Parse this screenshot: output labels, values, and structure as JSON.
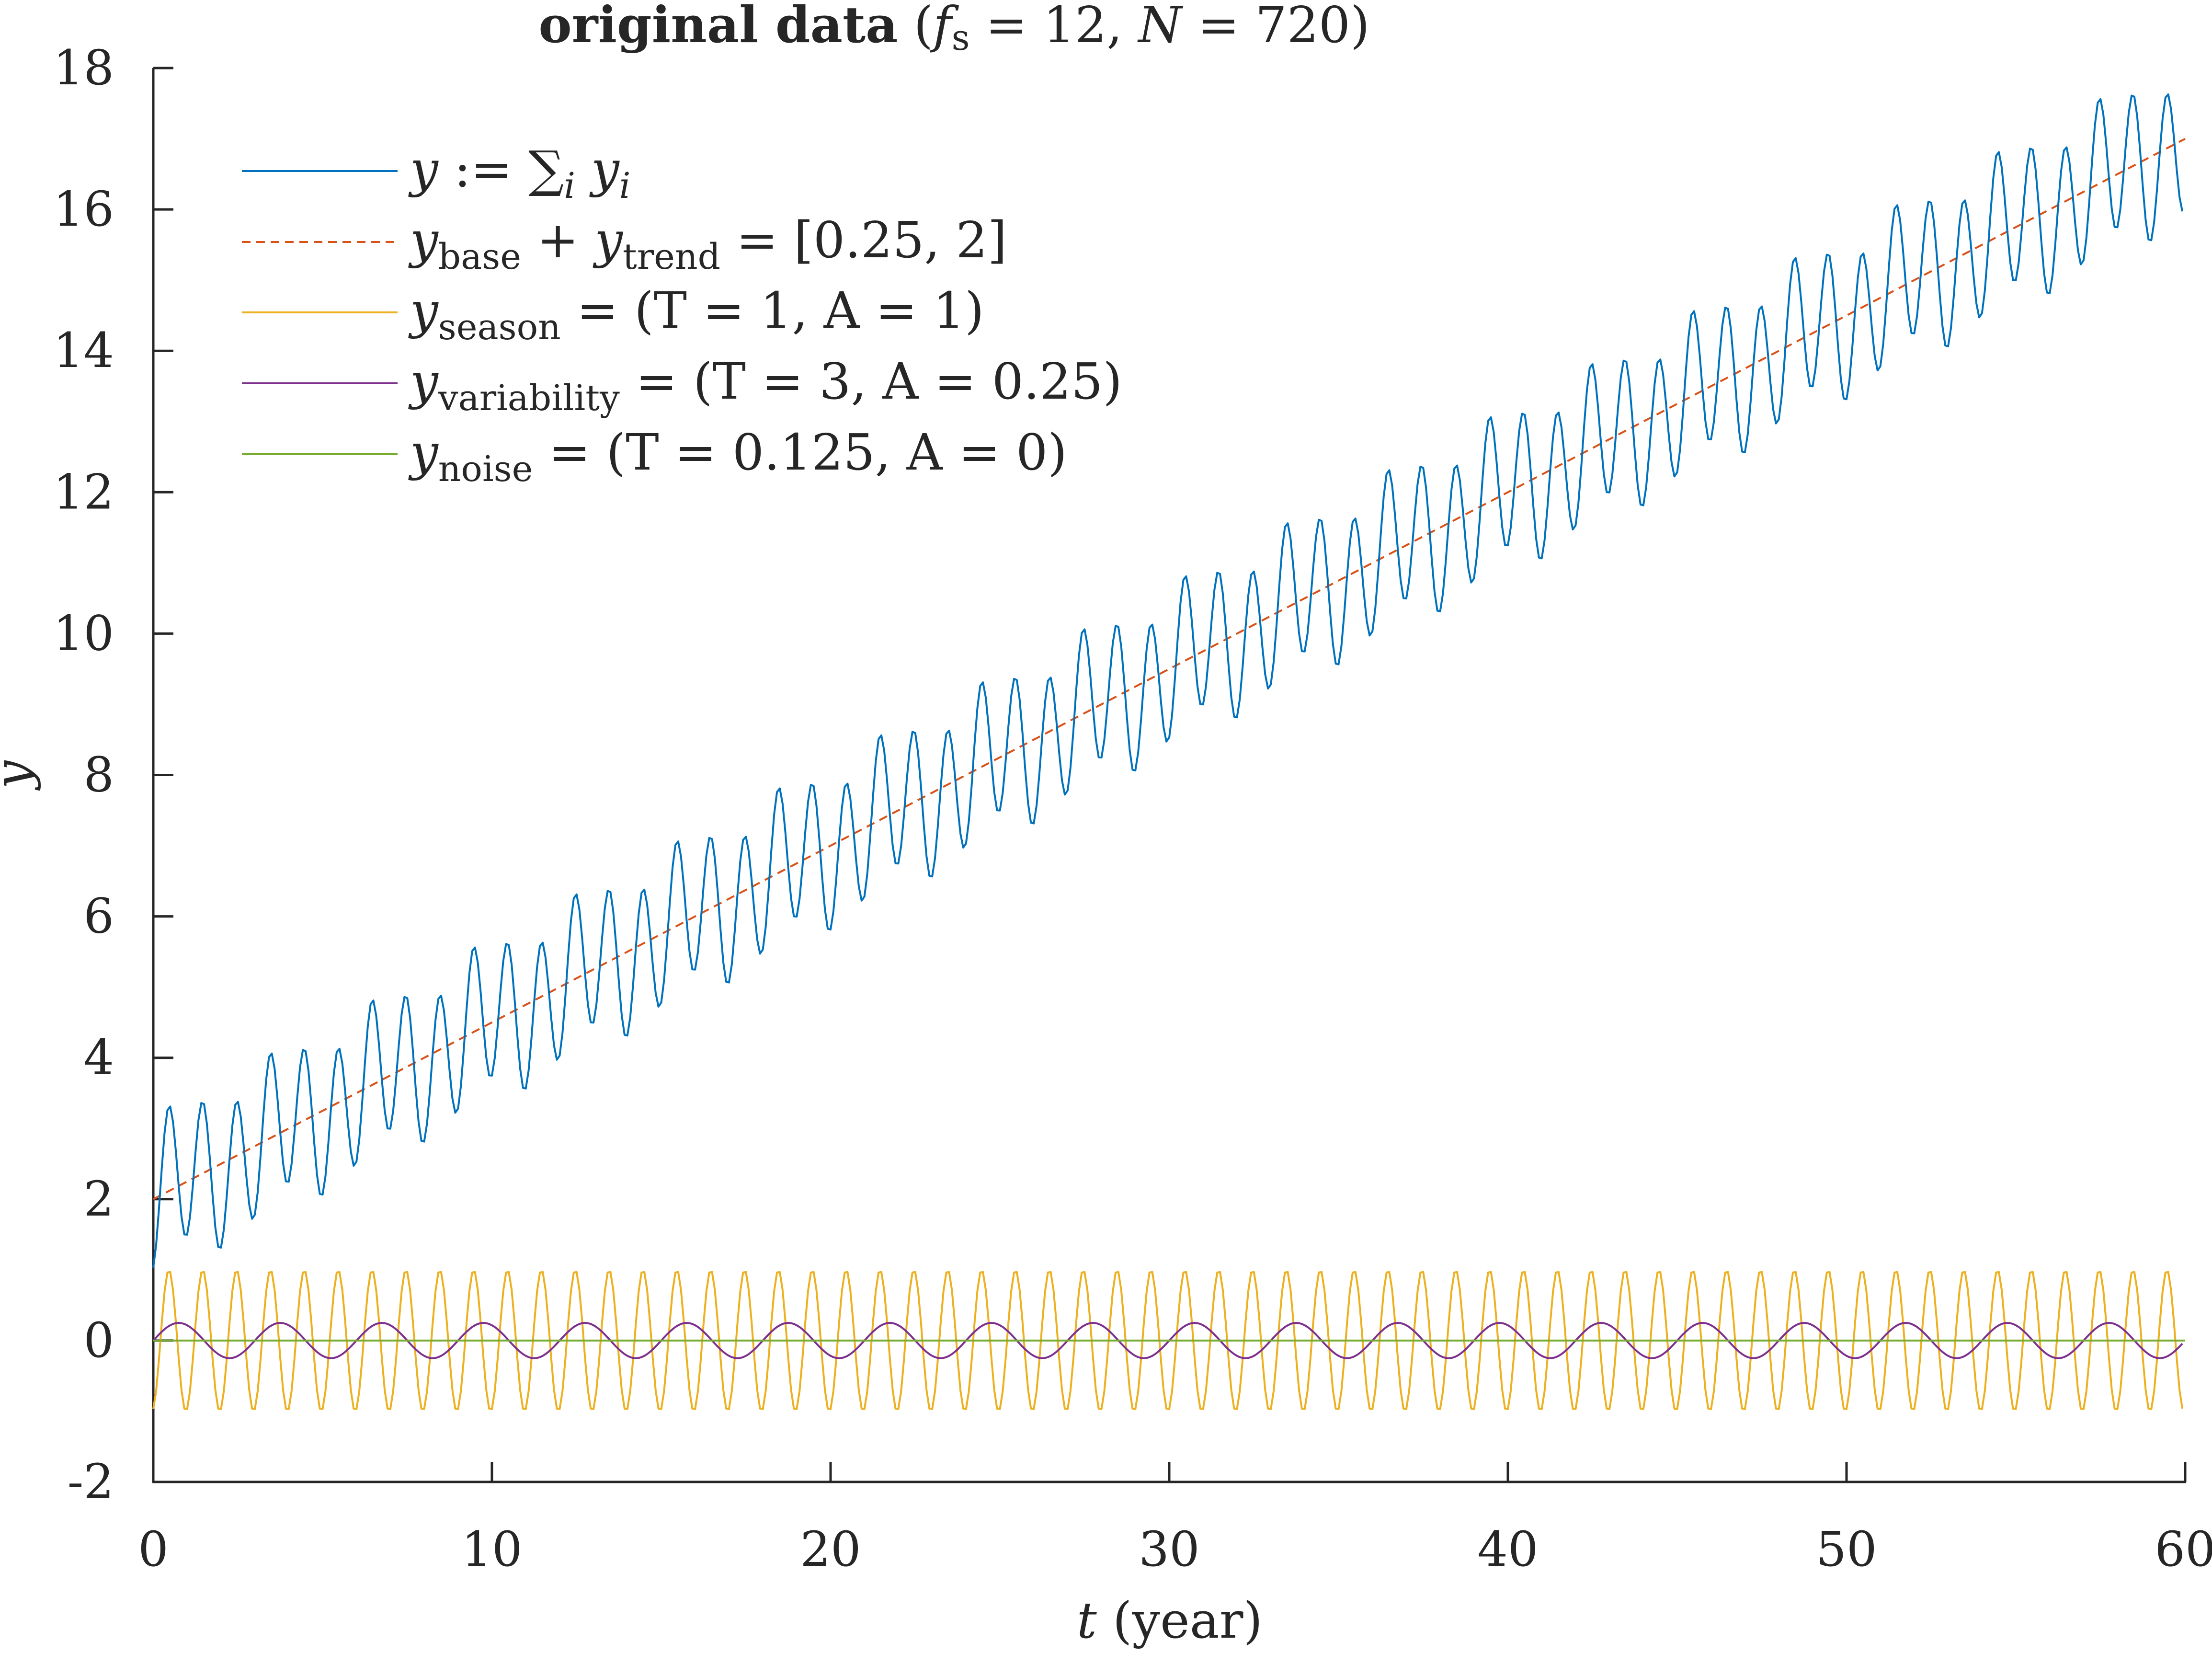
{
  "chart_data": {
    "type": "line",
    "title": {
      "bold": "original data",
      "params": "(fs = 12, N = 720)",
      "fs_label": "f",
      "fs_sub": "s",
      "fs_value": "12",
      "n_label": "N",
      "n_value": "720"
    },
    "xlabel": {
      "var": "t",
      "unit": "(year)"
    },
    "ylabel": "y",
    "xlim": [
      0,
      60
    ],
    "ylim": [
      -2,
      18
    ],
    "xticks": [
      0,
      10,
      20,
      30,
      40,
      50,
      60
    ],
    "yticks": [
      -2,
      0,
      2,
      4,
      6,
      8,
      10,
      12,
      14,
      16,
      18
    ],
    "ytick_labels": [
      "-2",
      "0",
      "2",
      "4",
      "6",
      "8",
      "10",
      "12",
      "14",
      "16",
      "18"
    ],
    "sampling": {
      "fs": 12,
      "N": 720
    },
    "legend_position": "top-left",
    "series": [
      {
        "name": "y := Σi yi",
        "kind": "sum",
        "color": "#0072BD",
        "dash": "solid",
        "legend": {
          "main": "y",
          "rest": " := ∑",
          "sub": "i",
          "tail": " y",
          "tail_sub": "i"
        },
        "sample_values": {
          "t": [
            0,
            0.25,
            59.92
          ],
          "y": [
            1.0,
            3.3,
            16.0
          ]
        }
      },
      {
        "name": "ybase + ytrend = [0.25, 2]",
        "kind": "trend",
        "color": "#D95319",
        "dash": "dashed",
        "base": 2,
        "slope": 0.25,
        "legend": {
          "main": "y",
          "sub": "base",
          "mid": " + y",
          "sub2": "trend",
          "tail": " = [0.25, 2]"
        },
        "sample_values": {
          "t": [
            0,
            60
          ],
          "y": [
            2,
            17
          ]
        }
      },
      {
        "name": "yseason = (T = 1, A = 1)",
        "kind": "season",
        "color": "#EDB120",
        "dash": "solid",
        "period": 1,
        "amplitude": 1,
        "legend": {
          "main": "y",
          "sub": "season",
          "tail": " = (T = 1, A = 1)"
        },
        "sample_values": {
          "t": [
            0,
            0.25,
            0.5,
            0.75
          ],
          "y": [
            -0.97,
            1.0,
            -0.97,
            1.0
          ]
        }
      },
      {
        "name": "yvariability = (T = 3, A = 0.25)",
        "kind": "variability",
        "color": "#7E2F8E",
        "dash": "solid",
        "period": 3,
        "amplitude": 0.25,
        "legend": {
          "main": "y",
          "sub": "variability",
          "tail": " = (T = 3, A = 0.25)"
        },
        "sample_values": {
          "t": [
            0,
            0.75,
            2.25,
            3
          ],
          "y": [
            0,
            0.25,
            -0.25,
            0
          ]
        }
      },
      {
        "name": "ynoise = (T = 0.125, A = 0)",
        "kind": "noise",
        "color": "#77AC30",
        "dash": "solid",
        "period": 0.125,
        "amplitude": 0,
        "legend": {
          "main": "y",
          "sub": "noise",
          "tail": " = (T = 0.125, A = 0)"
        },
        "sample_values": {
          "t": [
            0,
            60
          ],
          "y": [
            0,
            0
          ]
        }
      }
    ]
  }
}
